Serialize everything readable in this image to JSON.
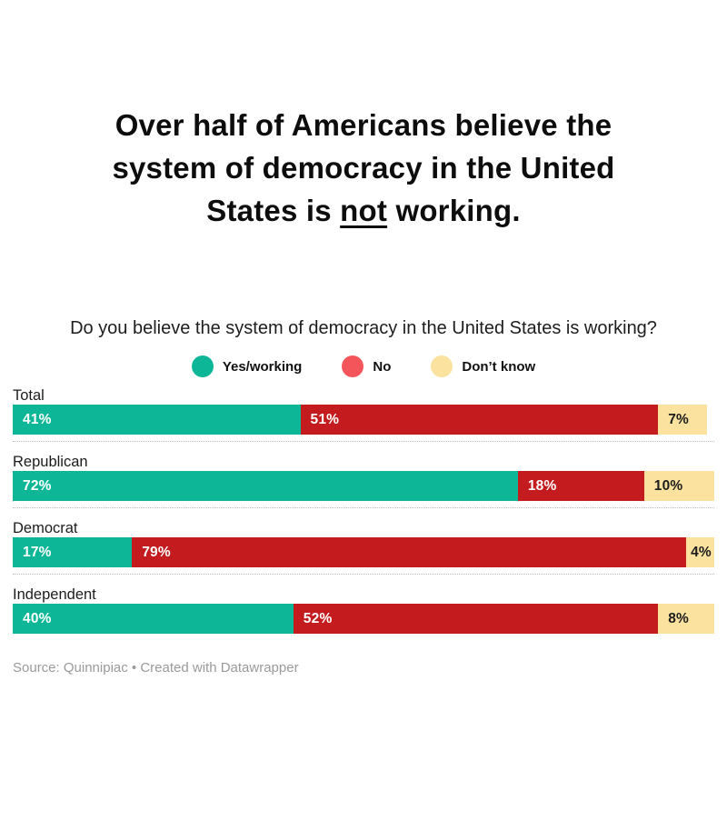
{
  "header": {
    "title": {
      "line1": "Over half of Americans believe the",
      "line2": "system of democracy in the United",
      "line3_prefix": "States is ",
      "line3_underline": "not",
      "line3_suffix": " working."
    }
  },
  "chart_data": {
    "type": "bar",
    "variant": "stacked-horizontal",
    "question": "Do you believe the system of democracy in the United States is working?",
    "value_suffix": "%",
    "axis_range": [
      0,
      100
    ],
    "grid": false,
    "legend_position": "top-center",
    "legend": [
      {
        "label": "Yes/working",
        "swatch_color": "#0CB697"
      },
      {
        "label": "No",
        "swatch_color": "#F4555B"
      },
      {
        "label": "Don’t know",
        "swatch_color": "#FBE29F"
      }
    ],
    "categories": [
      "Total",
      "Republican",
      "Democrat",
      "Independent"
    ],
    "series": [
      {
        "name": "Yes/working",
        "bar_color": "#0CB697",
        "label_color": "#FFFFFF",
        "values": [
          41,
          72,
          17,
          40
        ]
      },
      {
        "name": "No",
        "bar_color": "#C31B1E",
        "label_color": "#FFFFFF",
        "values": [
          51,
          18,
          79,
          52
        ]
      },
      {
        "name": "Don’t know",
        "bar_color": "#FBE29F",
        "label_color": "#1D1D1D",
        "values": [
          7,
          10,
          4,
          8
        ]
      }
    ]
  },
  "footer": {
    "source": "Source: Quinnipiac • Created with Datawrapper"
  }
}
